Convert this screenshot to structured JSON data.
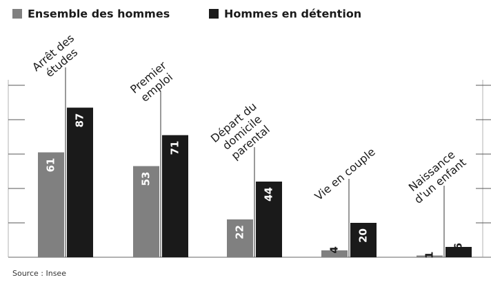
{
  "chart_data": {
    "type": "bar",
    "categories": [
      [
        "Arrêt des",
        "études"
      ],
      [
        "Premier",
        "emploi"
      ],
      [
        "Départ du",
        "domicile",
        "parental"
      ],
      [
        "Vie en couple"
      ],
      [
        "Naissance",
        "d'un enfant"
      ]
    ],
    "series": [
      {
        "name": "Ensemble des hommes",
        "color": "#808080",
        "values": [
          61,
          53,
          22,
          4,
          1
        ]
      },
      {
        "name": "Hommes en détention",
        "color": "#1a1a1a",
        "values": [
          87,
          71,
          44,
          20,
          6
        ]
      }
    ],
    "ylim": [
      0,
      100
    ],
    "yticks": [
      0,
      20,
      40,
      60,
      80,
      100
    ],
    "source": "Source : Insee"
  }
}
